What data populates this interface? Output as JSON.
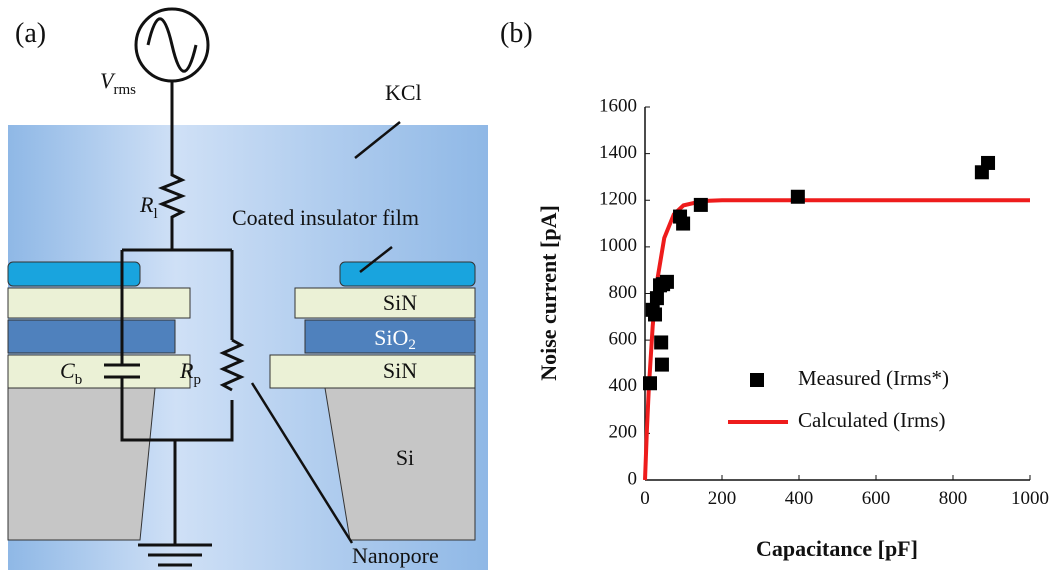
{
  "panel_a": {
    "panel_label": "(a)",
    "source": {
      "symbol": "V",
      "subscript": "rms"
    },
    "resistor_series": {
      "symbol": "R",
      "subscript": "l"
    },
    "capacitor": {
      "symbol": "C",
      "subscript": "b"
    },
    "resistor_pore": {
      "symbol": "R",
      "subscript": "p"
    },
    "solution": "KCl",
    "insulator": "Coated insulator film",
    "layers": {
      "sin_top": "SiN",
      "sio2": {
        "symbol": "SiO",
        "subscript": "2"
      },
      "sin_bottom": "SiN",
      "si": "Si"
    },
    "nanopore": "Nanopore"
  },
  "chart_data": {
    "type": "scatter",
    "panel_label": "(b)",
    "x_label": "Capacitance [pF]",
    "y_label": "Noise current [pA]",
    "xlim": [
      0,
      1000
    ],
    "xticks": [
      0,
      200,
      400,
      600,
      800,
      1000
    ],
    "ylim": [
      0,
      1600
    ],
    "yticks": [
      0,
      200,
      400,
      600,
      800,
      1000,
      1200,
      1400,
      1600
    ],
    "legend": "lower right",
    "series": [
      {
        "name": "Measured (Irms*)",
        "type": "scatter",
        "color": "#000000",
        "x": [
          13,
          20,
          26,
          31,
          39,
          42,
          44,
          47,
          57,
          91,
          99,
          145,
          397,
          875,
          891
        ],
        "values": [
          415,
          730,
          710,
          780,
          835,
          590,
          495,
          840,
          850,
          1130,
          1100,
          1180,
          1215,
          1320,
          1360
        ]
      },
      {
        "name": "Calculated (Irms)",
        "type": "line",
        "color": "#ee1c1c",
        "x": [
          0,
          5,
          10,
          20,
          30,
          50,
          75,
          100,
          150,
          200,
          300,
          400,
          600,
          800,
          1000
        ],
        "values": [
          0,
          218,
          396,
          661,
          839,
          1038,
          1140,
          1178,
          1197,
          1200,
          1200,
          1200,
          1200,
          1200,
          1200
        ]
      }
    ]
  }
}
